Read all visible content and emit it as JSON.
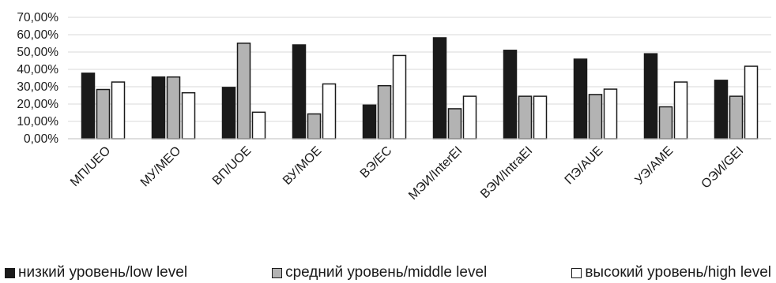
{
  "chart_data": {
    "type": "bar",
    "categories": [
      "МП/UEO",
      "МУ/MEO",
      "ВП/UOE",
      "ВУ/MOE",
      "ВЭ/EC",
      "МЭИ/InterEI",
      "ВЭИ/IntraEI",
      "ПЭ/AUE",
      "УЭ/AME",
      "ОЭИ/GEI"
    ],
    "series": [
      {
        "name": "низкий уровень/low level",
        "color": "#1a1a1a",
        "values": [
          37.8,
          35.6,
          29.6,
          54.1,
          19.4,
          58.2,
          51.0,
          45.9,
          49.0,
          33.7
        ]
      },
      {
        "name": "средний уровень/middle level",
        "color": "#b3b3b3",
        "values": [
          28.4,
          35.6,
          55.1,
          14.3,
          30.6,
          17.3,
          24.5,
          25.5,
          18.4,
          24.5
        ]
      },
      {
        "name": "высокий уровень/high level",
        "color": "#ffffff",
        "values": [
          32.7,
          26.5,
          15.3,
          31.6,
          48.0,
          24.5,
          24.5,
          28.6,
          32.7,
          41.8
        ]
      }
    ],
    "yticks": [
      "0,00%",
      "10,00%",
      "20,00%",
      "30,00%",
      "40,00%",
      "50,00%",
      "60,00%",
      "70,00%"
    ],
    "ylim": [
      0,
      70
    ],
    "title": "",
    "xlabel": "",
    "ylabel": "",
    "grid": true,
    "legend_position": "bottom"
  }
}
